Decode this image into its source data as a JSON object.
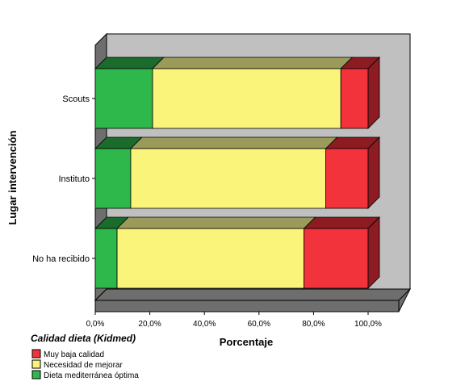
{
  "chart_data": {
    "type": "bar",
    "orientation": "horizontal",
    "stacked": true,
    "three_d": true,
    "categories": [
      "Scouts",
      "Instituto",
      "No ha recibido"
    ],
    "series": [
      {
        "name": "Dieta mediterránea óptima",
        "color": "#2eb84c",
        "top_color": "#1a6b2c",
        "values": [
          21,
          13,
          8
        ]
      },
      {
        "name": "Necesidad de mejorar",
        "color": "#faf57a",
        "top_color": "#9a9a5a",
        "values": [
          69,
          71.5,
          68.5
        ]
      },
      {
        "name": "Muy baja calidad",
        "color": "#f2333c",
        "top_color": "#8c1b22",
        "values": [
          10,
          15.5,
          23.5
        ]
      }
    ],
    "legend_order": [
      "Muy baja calidad",
      "Necesidad de mejorar",
      "Dieta mediterránea óptima"
    ],
    "xlabel": "Porcentaje",
    "ylabel": "Lugar intervención",
    "xlim": [
      0,
      100
    ],
    "xticks": [
      "0,0%",
      "20,0%",
      "40,0%",
      "60,0%",
      "80,0%",
      "100,0%"
    ],
    "grid": false,
    "legend_title": "Calidad dieta (Kidmed)",
    "legend_position": "bottom-left",
    "colors": {
      "wall": "#c0c0c0",
      "floor": "#6e6e6e",
      "side_wall": "#6e6e6e"
    }
  }
}
